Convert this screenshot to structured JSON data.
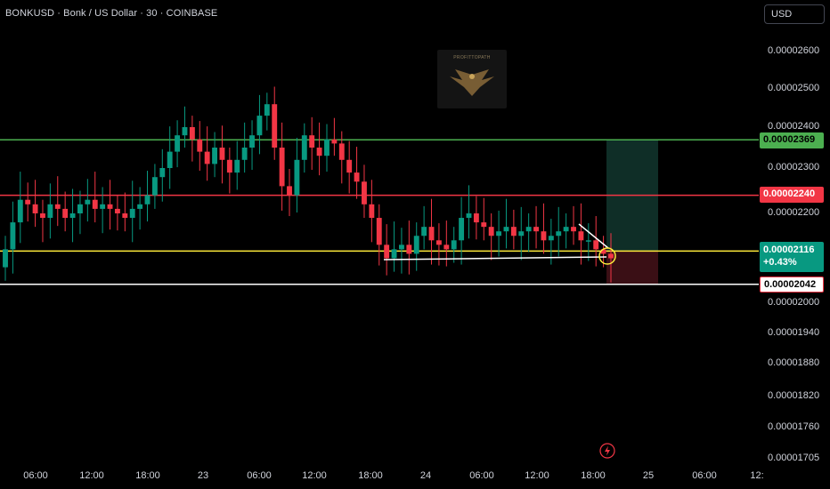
{
  "header": {
    "title": "BONKUSD · Bonk / US Dollar · 30 · COINBASE",
    "currency_label": "USD"
  },
  "watermark": {
    "text": "PROFITTOPATH",
    "icon": "eagle-logo-icon"
  },
  "colors": {
    "background": "#000000",
    "up": "#089981",
    "down": "#f23645",
    "green_line": "#4caf50",
    "red_line": "#f23645",
    "yellow_line": "#ffeb3b",
    "white_line": "#ffffff",
    "profit_zone": "#0f2e27",
    "loss_zone": "#3a0f15"
  },
  "chart_data": {
    "type": "candlestick",
    "title": "BONKUSD · Bonk / US Dollar · 30 · COINBASE",
    "y_axis": {
      "ticks": [
        "0.00002600",
        "0.00002500",
        "0.00002400",
        "0.00002300",
        "0.00002200",
        "0.00002000",
        "0.00001940",
        "0.00001880",
        "0.00001820",
        "0.00001760",
        "0.00001705"
      ],
      "tick_values": [
        2.6e-05,
        2.5e-05,
        2.4e-05,
        2.3e-05,
        2.2e-05,
        2e-05,
        1.94e-05,
        1.88e-05,
        1.82e-05,
        1.76e-05,
        1.705e-05
      ]
    },
    "x_axis": {
      "ticks": [
        "06:00",
        "12:00",
        "18:00",
        "23",
        "06:00",
        "12:00",
        "18:00",
        "24",
        "06:00",
        "12:00",
        "18:00",
        "25",
        "06:00",
        "12:"
      ]
    },
    "levels": [
      {
        "name": "take-profit",
        "price": 2.369e-05,
        "label": "0.00002369",
        "color": "#4caf50"
      },
      {
        "name": "resistance",
        "price": 2.24e-05,
        "label": "0.00002240",
        "color": "#f23645"
      },
      {
        "name": "last-price",
        "price": 2.116e-05,
        "label": "0.00002116",
        "change": "+0.43%",
        "color": "#ffeb3b"
      },
      {
        "name": "stop-loss",
        "price": 2.042e-05,
        "label": "0.00002042",
        "color": "#ffffff"
      }
    ],
    "price_path": [
      2.12e-05,
      2.18e-05,
      2.23e-05,
      2.22e-05,
      2.2e-05,
      2.19e-05,
      2.22e-05,
      2.21e-05,
      2.19e-05,
      2.2e-05,
      2.22e-05,
      2.23e-05,
      2.21e-05,
      2.22e-05,
      2.21e-05,
      2.2e-05,
      2.19e-05,
      2.21e-05,
      2.22e-05,
      2.24e-05,
      2.28e-05,
      2.3e-05,
      2.34e-05,
      2.38e-05,
      2.4e-05,
      2.37e-05,
      2.34e-05,
      2.31e-05,
      2.35e-05,
      2.32e-05,
      2.29e-05,
      2.32e-05,
      2.35e-05,
      2.38e-05,
      2.43e-05,
      2.46e-05,
      2.35e-05,
      2.26e-05,
      2.24e-05,
      2.32e-05,
      2.38e-05,
      2.35e-05,
      2.33e-05,
      2.37e-05,
      2.36e-05,
      2.32e-05,
      2.29e-05,
      2.27e-05,
      2.22e-05,
      2.19e-05,
      2.13e-05,
      2.1e-05,
      2.12e-05,
      2.13e-05,
      2.11e-05,
      2.15e-05,
      2.17e-05,
      2.14e-05,
      2.13e-05,
      2.12e-05,
      2.14e-05,
      2.19e-05,
      2.2e-05,
      2.18e-05,
      2.17e-05,
      2.15e-05,
      2.16e-05,
      2.17e-05,
      2.15e-05,
      2.16e-05,
      2.17e-05,
      2.16e-05,
      2.14e-05,
      2.15e-05,
      2.16e-05,
      2.17e-05,
      2.16e-05,
      2.14e-05,
      2.14e-05,
      2.12e-05,
      2.11e-05,
      2.1e-05
    ],
    "position": {
      "entry": 2.116e-05,
      "target": 2.369e-05,
      "stop": 2.042e-05
    }
  }
}
